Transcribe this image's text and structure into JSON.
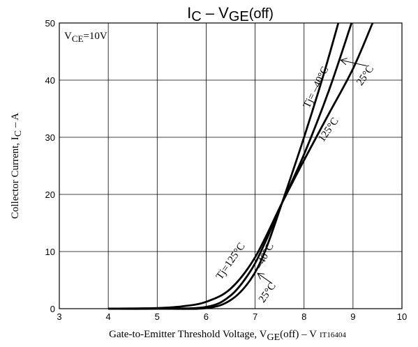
{
  "chart_data": {
    "type": "line",
    "title_main": "I",
    "title_sub": "C",
    "title_mid": " – V",
    "title_sub2": "GE",
    "title_tail": "(off)",
    "xlabel_main": "Gate-to-Emitter Threshold Voltage, V",
    "xlabel_sub": "GE",
    "xlabel_tail": "(off)  –  V",
    "figure_code": "IT16404",
    "ylabel_main": "Collector Current, I",
    "ylabel_sub": "C",
    "ylabel_tail": "  –  A",
    "condition_main": "V",
    "condition_sub": "CE",
    "condition_tail": "=10V",
    "xlim": [
      3,
      10
    ],
    "ylim": [
      0,
      50
    ],
    "x_ticks": [
      "3",
      "4",
      "5",
      "6",
      "7",
      "8",
      "9",
      "10"
    ],
    "y_ticks": [
      "0",
      "10",
      "20",
      "30",
      "40",
      "50"
    ],
    "grid": true,
    "series": [
      {
        "name": "Tj= –40°C",
        "x": [
          4.0,
          5.0,
          6.0,
          6.5,
          6.9,
          7.2,
          7.55,
          8.0,
          8.4,
          8.7
        ],
        "y": [
          0,
          0,
          0.1,
          1.5,
          5,
          10,
          18.5,
          30,
          41,
          50
        ]
      },
      {
        "name": "25°C",
        "x": [
          4.0,
          5.0,
          6.0,
          6.5,
          6.9,
          7.2,
          7.55,
          8.0,
          8.5,
          8.97
        ],
        "y": [
          0,
          0,
          0.3,
          2.3,
          6.5,
          11.5,
          18.5,
          27,
          38,
          50
        ]
      },
      {
        "name": "125°C",
        "x": [
          4.0,
          5.0,
          5.5,
          6.0,
          6.5,
          7.0,
          7.55,
          8.0,
          8.5,
          9.0,
          9.4
        ],
        "y": [
          0,
          0.1,
          0.4,
          1.2,
          3.5,
          9,
          18.5,
          26,
          34,
          42,
          50
        ]
      }
    ],
    "annotations": [
      {
        "text": "Tj= –40°C",
        "x": 8.3,
        "y": 38.5,
        "rotate": -64
      },
      {
        "text": "125°C",
        "x": 8.55,
        "y": 31,
        "rotate": -55
      },
      {
        "text": "25°C",
        "x": 9.3,
        "y": 40.5,
        "rotate": -55
      },
      {
        "text": "Tj=125°C",
        "x": 6.55,
        "y": 8,
        "rotate": -55
      },
      {
        "text": "–40°C",
        "x": 7.25,
        "y": 9,
        "rotate": -62
      },
      {
        "text": "25°C",
        "x": 7.3,
        "y": 2.5,
        "rotate": -55
      }
    ]
  }
}
